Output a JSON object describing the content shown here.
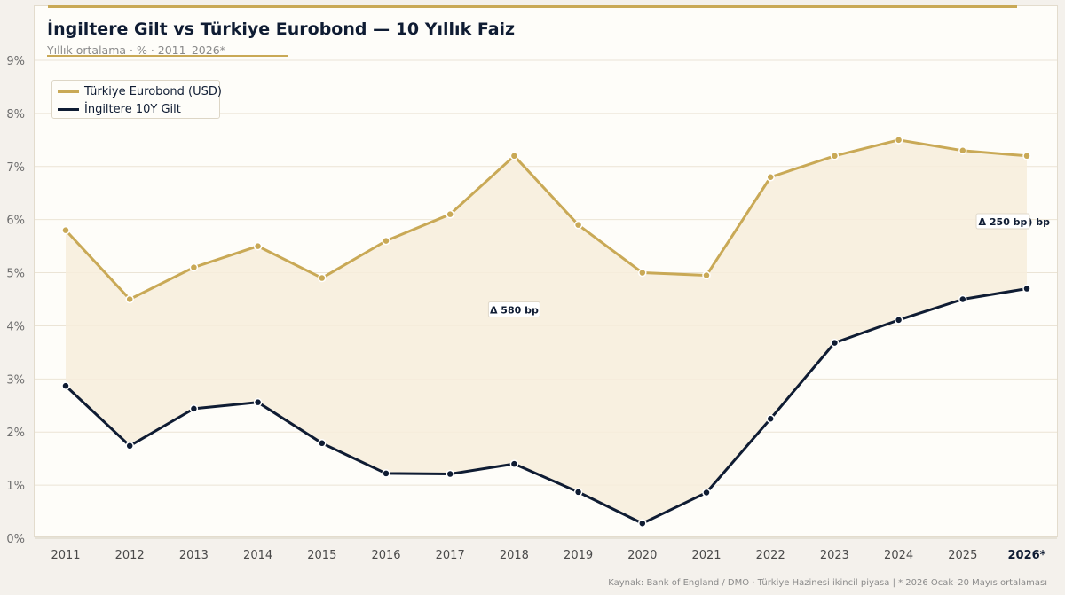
{
  "page": {
    "title": "İngiltere Gilt vs Türkiye Eurobond — 10 Yıllık Faiz",
    "subtitle": "Yıllık ortalama  ·  %  ·  2011–2026*",
    "source": "Kaynak: Bank of England / DMO · Türkiye Hazinesi ikincil piyasa  |  * 2026 Ocak–20 Mayıs ortalaması"
  },
  "colors": {
    "gold": "#c9a956",
    "navy": "#0f1c33",
    "fill": "#f7eddc"
  },
  "chart_data": {
    "type": "line",
    "x": [
      "2011",
      "2012",
      "2013",
      "2014",
      "2015",
      "2016",
      "2017",
      "2018",
      "2019",
      "2020",
      "2021",
      "2022",
      "2023",
      "2024",
      "2025",
      "2026*"
    ],
    "ylim": [
      0,
      9
    ],
    "yticks": [
      "0%",
      "1%",
      "2%",
      "3%",
      "4%",
      "5%",
      "6%",
      "7%",
      "8%",
      "9%"
    ],
    "grid": true,
    "legend_position": "top-left",
    "series": [
      {
        "name": "Türkiye Eurobond (USD)",
        "color": "#c9a956",
        "values": [
          5.8,
          4.5,
          5.1,
          5.5,
          4.9,
          5.6,
          6.1,
          7.2,
          5.9,
          5.0,
          4.95,
          6.8,
          7.2,
          7.5,
          7.3,
          7.2
        ]
      },
      {
        "name": "İngiltere 10Y Gilt",
        "color": "#0f1c33",
        "values": [
          2.87,
          1.74,
          2.44,
          2.56,
          1.79,
          1.22,
          1.21,
          1.4,
          0.87,
          0.28,
          0.86,
          2.25,
          3.68,
          4.11,
          4.5,
          4.7
        ]
      }
    ],
    "annotations": [
      {
        "text": "Δ 580 bp",
        "x": "2018",
        "y": 4.3
      },
      {
        "text": "Δ 250 bp",
        "x": "2026*",
        "y": 5.96,
        "clipped_text": ") bp"
      }
    ]
  }
}
